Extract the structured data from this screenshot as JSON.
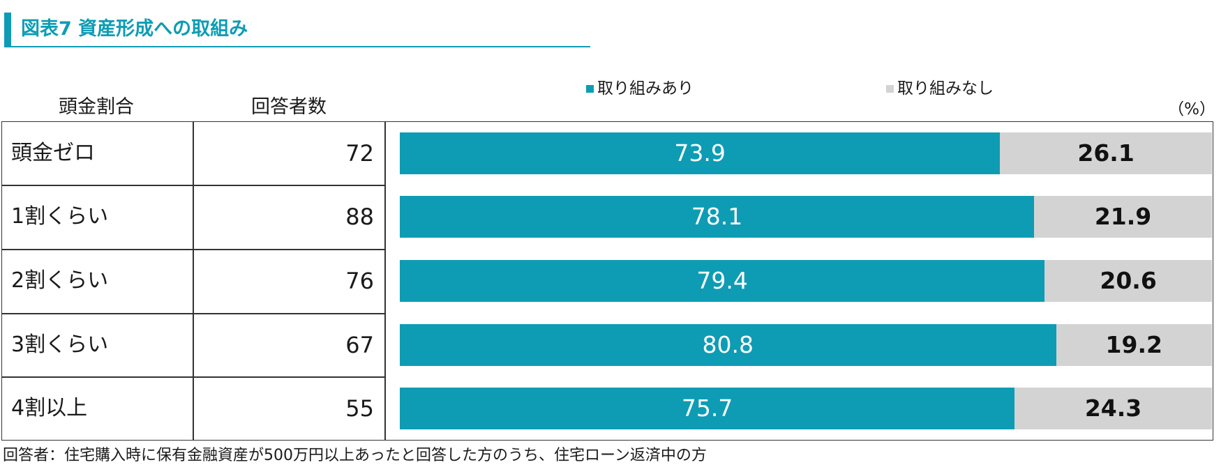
{
  "title": "図表7 資産形成への取組み",
  "table": {
    "header_ratio": "頭金割合",
    "header_count": "回答者数",
    "rows": [
      {
        "label": "頭金ゼロ",
        "count": "72"
      },
      {
        "label": "1割くらい",
        "count": "88"
      },
      {
        "label": "2割くらい",
        "count": "76"
      },
      {
        "label": "3割くらい",
        "count": "67"
      },
      {
        "label": "4割以上",
        "count": "55"
      }
    ]
  },
  "unit": "（%）",
  "footnote": "回答者：住宅購入時に保有金融資産が500万円以上あったと回答した方のうち、住宅ローン返済中の方",
  "colors": {
    "yes": "#0e9cb4",
    "no": "#d3d3d3",
    "accent": "#0e9cb4"
  },
  "chart_data": {
    "type": "bar",
    "orientation": "horizontal",
    "stacked": true,
    "percent_stacked": true,
    "categories": [
      "頭金ゼロ",
      "1割くらい",
      "2割くらい",
      "3割くらい",
      "4割以上"
    ],
    "series": [
      {
        "name": "取り組みあり",
        "values": [
          73.9,
          78.1,
          79.4,
          80.8,
          75.7
        ],
        "color": "#0e9cb4"
      },
      {
        "name": "取り組みなし",
        "values": [
          26.1,
          21.9,
          20.6,
          19.2,
          24.3
        ],
        "color": "#d3d3d3"
      }
    ],
    "value_labels": {
      "yes": [
        "73.9",
        "78.1",
        "79.4",
        "80.8",
        "75.7"
      ],
      "no": [
        "26.1",
        "21.9",
        "20.6",
        "19.2",
        "24.3"
      ]
    },
    "xlim": [
      0,
      100
    ],
    "legend": {
      "position": "top",
      "items": [
        "取り組みあり",
        "取り組みなし"
      ]
    }
  }
}
